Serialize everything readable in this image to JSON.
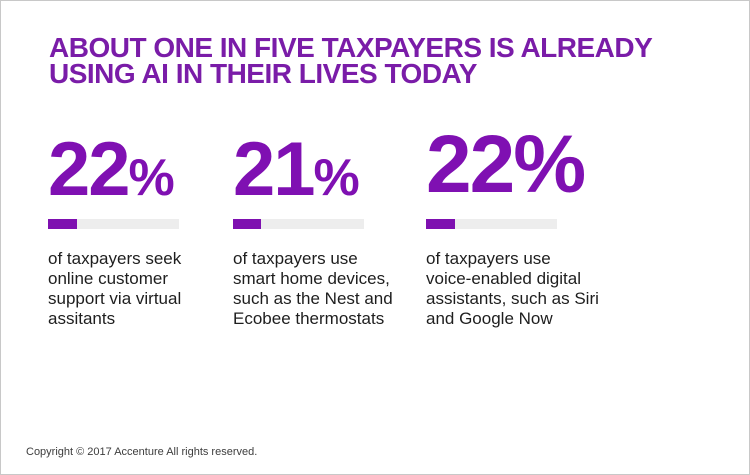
{
  "colors": {
    "background": "#FFFFFF",
    "frame-border": "#C8C8C8",
    "headline-purple": "#7A1CA8",
    "stat-purple": "#7F10B2",
    "bar-fill": "#7E10B0",
    "bar-track": "#EDEDED",
    "body-text": "#1E1E1E",
    "copyright-text": "#3D3D3D"
  },
  "headline": {
    "line1": "ABOUT ONE IN FIVE TAXPAYERS IS ALREADY",
    "line2": "USING AI IN THEIR LIVES TODAY"
  },
  "stats": [
    {
      "number": "22",
      "percent_sign": "%",
      "value": 22,
      "description_lines": [
        "of taxpayers seek",
        "online customer",
        "support via virtual",
        "assitants"
      ]
    },
    {
      "number": "21",
      "percent_sign": "%",
      "value": 21,
      "description_lines": [
        "of taxpayers use",
        "smart home devices,",
        "such as the Nest and",
        "Ecobee thermostats"
      ]
    },
    {
      "number": "22",
      "percent_sign": "%",
      "value": 22,
      "description_lines": [
        "of taxpayers use",
        "voice-enabled digital",
        "assistants, such as Siri",
        "and Google Now"
      ]
    }
  ],
  "footer": {
    "copyright": "Copyright © 2017 Accenture All rights reserved."
  },
  "chart_data": {
    "type": "bar",
    "title": "ABOUT ONE IN FIVE TAXPAYERS IS ALREADY USING AI IN THEIR LIVES TODAY",
    "categories": [
      "of taxpayers seek online customer support via virtual assitants",
      "of taxpayers use smart home devices, such as the Nest and Ecobee thermostats",
      "of taxpayers use voice-enabled digital assistants, such as Siri and Google Now"
    ],
    "values": [
      22,
      21,
      22
    ],
    "unit": "%",
    "xlim": [
      0,
      100
    ],
    "orientation": "horizontal",
    "bar_color": "#7E10B0",
    "track_color": "#EDEDED",
    "legend": false,
    "grid": false,
    "source_note": "Copyright © 2017 Accenture All rights reserved."
  }
}
